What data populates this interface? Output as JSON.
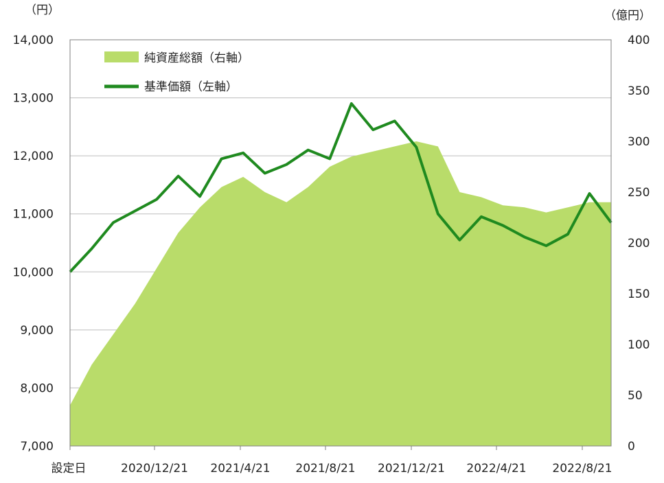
{
  "chart_data": {
    "type": "line",
    "left_unit": "（円）",
    "right_unit": "（億円）",
    "ylim_left": [
      7000,
      14000
    ],
    "ylim_right": [
      0,
      400
    ],
    "y_ticks_left": [
      "14,000",
      "13,000",
      "12,000",
      "11,000",
      "10,000",
      "9,000",
      "8,000",
      "7,000"
    ],
    "y_ticks_right": [
      "400",
      "350",
      "300",
      "250",
      "200",
      "150",
      "100",
      "50",
      "0"
    ],
    "x_ticks": [
      "設定日",
      "2020/12/21",
      "2021/4/21",
      "2021/8/21",
      "2021/12/21",
      "2022/4/21",
      "2022/8/21"
    ],
    "grid": true,
    "legend_position": "top-left",
    "series": [
      {
        "name": "純資産総額（右軸）",
        "axis": "right",
        "kind": "area",
        "color": "#b9dc6a",
        "x": [
          "2020-08",
          "2020-09",
          "2020-10",
          "2020-11",
          "2020-12",
          "2021-01",
          "2021-02",
          "2021-03",
          "2021-04",
          "2021-05",
          "2021-06",
          "2021-07",
          "2021-08",
          "2021-09",
          "2021-10",
          "2021-11",
          "2021-12",
          "2022-01",
          "2022-02",
          "2022-03",
          "2022-04",
          "2022-05",
          "2022-06",
          "2022-07",
          "2022-08",
          "2022-09"
        ],
        "values": [
          40,
          80,
          110,
          140,
          175,
          210,
          235,
          255,
          265,
          250,
          240,
          255,
          275,
          285,
          290,
          295,
          300,
          295,
          250,
          245,
          237,
          235,
          230,
          235,
          240,
          240
        ]
      },
      {
        "name": "基準価額（左軸）",
        "axis": "left",
        "kind": "line",
        "color": "#1f8a1f",
        "x": [
          "2020-08",
          "2020-09",
          "2020-10",
          "2020-11",
          "2020-12",
          "2021-01",
          "2021-02",
          "2021-03",
          "2021-04",
          "2021-05",
          "2021-06",
          "2021-07",
          "2021-08",
          "2021-09",
          "2021-10",
          "2021-11",
          "2021-12",
          "2022-01",
          "2022-02",
          "2022-03",
          "2022-04",
          "2022-05",
          "2022-06",
          "2022-07",
          "2022-08",
          "2022-09"
        ],
        "values": [
          10000,
          10400,
          10850,
          11050,
          11250,
          11650,
          11300,
          11950,
          12050,
          11700,
          11850,
          12100,
          11950,
          12900,
          12450,
          12600,
          12150,
          11000,
          10550,
          10950,
          10800,
          10600,
          10450,
          10650,
          11350,
          10850
        ]
      }
    ]
  }
}
